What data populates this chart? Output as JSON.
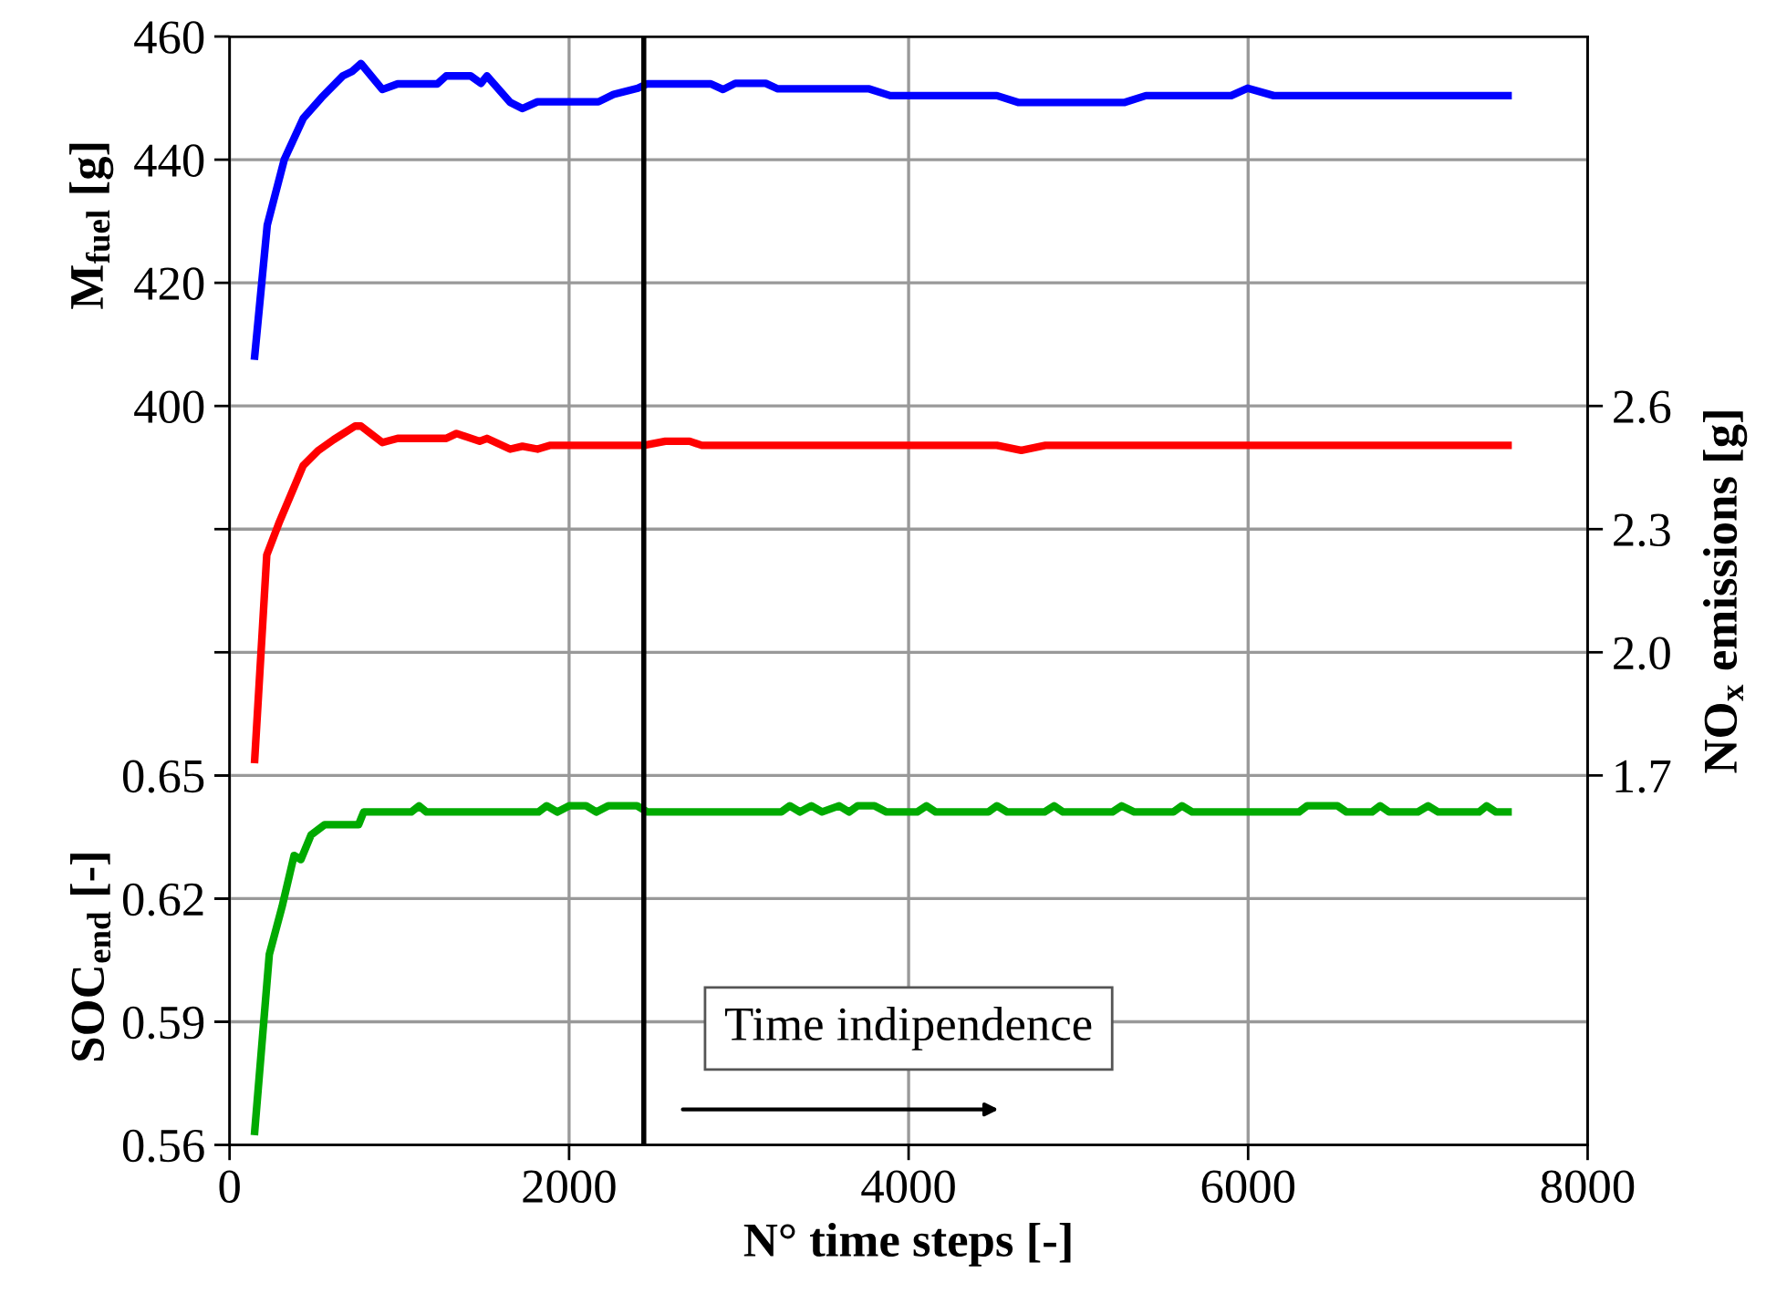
{
  "chart_data": {
    "type": "line",
    "xlabel": "N° time steps [-]",
    "ylabel": "M$_{fuel}$ [g]",
    "y2label": "NO$_{x}$ emissions [g]",
    "y3label": "SOC$_{end}$ [-]",
    "xlim": [
      0,
      8000
    ],
    "xticks": [
      0,
      2000,
      4000,
      6000,
      8000
    ],
    "ylim": [
      280,
      460
    ],
    "yticks": [
      {
        "value": 300,
        "label": null
      },
      {
        "value": 320,
        "label": null
      },
      {
        "value": 340,
        "label": null
      },
      {
        "value": 360,
        "label": null
      },
      {
        "value": 380,
        "label": null
      },
      400,
      420,
      440,
      460
    ],
    "y2lim": [
      0.8,
      3.5
    ],
    "y2ticks": [
      1.7,
      {
        "value": 2,
        "label": "2.0"
      },
      2.3,
      2.6
    ],
    "y3lim": [
      0.56,
      0.83
    ],
    "y3ticks": [
      0.56,
      0.59,
      0.62,
      0.65
    ],
    "grid": true,
    "legend": false,
    "line_style": "solid",
    "marker": "none",
    "ref_lines": [
      {
        "axis": "x",
        "value": 2440,
        "color": "#000000"
      }
    ],
    "annotations": [
      "Time indipendence"
    ],
    "series": [
      {
        "color": "#0000ff",
        "axis": "y",
        "x": [
          148,
          222,
          322,
          434,
          542,
          667,
          720,
          774,
          900,
          990,
          1223,
          1276,
          1420,
          1481,
          1516,
          1653,
          1725,
          1814,
          2173,
          2262,
          2405,
          2459,
          2835,
          2907,
          2979,
          3158,
          3230,
          3768,
          3892,
          4520,
          4645,
          5273,
          5398,
          5900,
          5997,
          6151,
          7531
        ],
        "values": [
          408.1,
          429.4,
          440,
          446.7,
          450.1,
          453.6,
          454.3,
          455.6,
          451.4,
          452.3,
          452.3,
          453.6,
          453.6,
          452.4,
          453.6,
          449.3,
          448.3,
          449.4,
          449.4,
          450.6,
          451.6,
          452.3,
          452.3,
          451.4,
          452.4,
          452.4,
          451.5,
          451.5,
          450.4,
          450.4,
          449.3,
          449.3,
          450.4,
          450.4,
          451.6,
          450.4,
          450.4
        ]
      },
      {
        "color": "#ff0000",
        "axis": "y2",
        "x": [
          148,
          219,
          290,
          434,
          524,
          613,
          739,
          774,
          900,
          990,
          1276,
          1337,
          1473,
          1516,
          1653,
          1725,
          1814,
          1886,
          2441,
          2567,
          2710,
          2782,
          4520,
          4664,
          4806,
          7531
        ],
        "values": [
          1.739,
          2.237,
          2.314,
          2.455,
          2.492,
          2.518,
          2.551,
          2.551,
          2.511,
          2.521,
          2.521,
          2.533,
          2.514,
          2.521,
          2.495,
          2.502,
          2.495,
          2.504,
          2.504,
          2.514,
          2.514,
          2.504,
          2.504,
          2.492,
          2.504,
          2.504
        ]
      },
      {
        "color": "#00aa00",
        "axis": "y3",
        "x": [
          148,
          234,
          309,
          380,
          420,
          480,
          560,
          760,
          790,
          1070,
          1116,
          1160,
          1820,
          1868,
          1930,
          2000,
          2100,
          2160,
          2230,
          2400,
          2460,
          3250,
          3300,
          3360,
          3427,
          3490,
          3591,
          3650,
          3700,
          3800,
          3870,
          4050,
          4105,
          4160,
          4470,
          4520,
          4580,
          4800,
          4857,
          4910,
          5200,
          5255,
          5330,
          5560,
          5610,
          5670,
          6300,
          6348,
          6527,
          6580,
          6730,
          6778,
          6830,
          7000,
          7061,
          7120,
          7360,
          7405,
          7460,
          7531
        ],
        "values": [
          0.5633,
          0.6064,
          0.618,
          0.6305,
          0.6295,
          0.6355,
          0.638,
          0.638,
          0.6411,
          0.6411,
          0.6426,
          0.6411,
          0.6411,
          0.6426,
          0.6411,
          0.6426,
          0.6426,
          0.6411,
          0.6426,
          0.6426,
          0.6411,
          0.6411,
          0.6426,
          0.6411,
          0.6426,
          0.6411,
          0.6426,
          0.6411,
          0.6426,
          0.6426,
          0.6411,
          0.6411,
          0.6426,
          0.6411,
          0.6411,
          0.6426,
          0.6411,
          0.6411,
          0.6426,
          0.6411,
          0.6411,
          0.6426,
          0.6411,
          0.6411,
          0.6426,
          0.6411,
          0.6411,
          0.6426,
          0.6426,
          0.6411,
          0.6411,
          0.6426,
          0.6411,
          0.6411,
          0.6426,
          0.6411,
          0.6411,
          0.6426,
          0.6411,
          0.6411
        ]
      }
    ]
  }
}
